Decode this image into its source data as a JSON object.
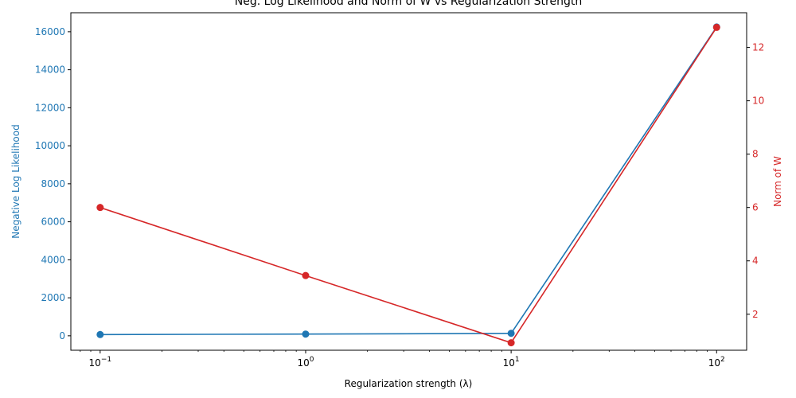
{
  "chart_data": {
    "type": "line",
    "title": "Neg. Log Likelihood and Norm of W vs Regularization Strength",
    "xlabel": "Regularization strength (λ)",
    "xscale": "log",
    "xlim": [
      0.072,
      140
    ],
    "x": [
      0.1,
      1,
      10,
      100
    ],
    "x_ticks": [
      {
        "value": 0.1,
        "base": "10",
        "exp": "−1"
      },
      {
        "value": 1,
        "base": "10",
        "exp": "0"
      },
      {
        "value": 10,
        "base": "10",
        "exp": "1"
      },
      {
        "value": 100,
        "base": "10",
        "exp": "2"
      }
    ],
    "y_left": {
      "label": "Negative Log Likelihood",
      "color": "#1f77b4",
      "ylim": [
        -760,
        17000
      ],
      "ticks": [
        0,
        2000,
        4000,
        6000,
        8000,
        10000,
        12000,
        14000,
        16000
      ]
    },
    "y_right": {
      "label": "Norm of W",
      "color": "#d62728",
      "ylim": [
        0.65,
        13.3
      ],
      "ticks": [
        2,
        4,
        6,
        8,
        10,
        12
      ]
    },
    "series": [
      {
        "axis": "left",
        "color": "#1f77b4",
        "values": [
          65,
          90,
          130,
          16250
        ]
      },
      {
        "axis": "right",
        "color": "#d62728",
        "values": [
          6.0,
          3.45,
          0.93,
          12.75
        ]
      }
    ],
    "grid": false
  }
}
